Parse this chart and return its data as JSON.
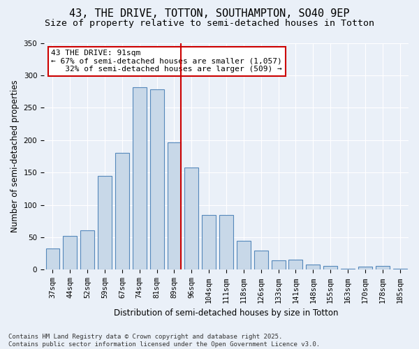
{
  "title": "43, THE DRIVE, TOTTON, SOUTHAMPTON, SO40 9EP",
  "subtitle": "Size of property relative to semi-detached houses in Totton",
  "xlabel": "Distribution of semi-detached houses by size in Totton",
  "ylabel": "Number of semi-detached properties",
  "categories": [
    "37sqm",
    "44sqm",
    "52sqm",
    "59sqm",
    "67sqm",
    "74sqm",
    "81sqm",
    "89sqm",
    "96sqm",
    "104sqm",
    "111sqm",
    "118sqm",
    "126sqm",
    "133sqm",
    "141sqm",
    "148sqm",
    "155sqm",
    "163sqm",
    "170sqm",
    "178sqm",
    "185sqm"
  ],
  "values": [
    33,
    52,
    61,
    145,
    180,
    282,
    278,
    197,
    158,
    85,
    85,
    45,
    30,
    15,
    16,
    8,
    6,
    2,
    5,
    6,
    2
  ],
  "bar_color": "#c8d8e8",
  "bar_edge_color": "#5588bb",
  "vline_x": 7.4,
  "vline_color": "#cc0000",
  "annotation_text": "43 THE DRIVE: 91sqm\n← 67% of semi-detached houses are smaller (1,057)\n   32% of semi-detached houses are larger (509) →",
  "annotation_box_color": "#ffffff",
  "annotation_box_edge": "#cc0000",
  "ylim": [
    0,
    350
  ],
  "yticks": [
    0,
    50,
    100,
    150,
    200,
    250,
    300,
    350
  ],
  "background_color": "#eaf0f8",
  "plot_background": "#eaf0f8",
  "footer": "Contains HM Land Registry data © Crown copyright and database right 2025.\nContains public sector information licensed under the Open Government Licence v3.0.",
  "title_fontsize": 11,
  "subtitle_fontsize": 9.5,
  "ylabel_fontsize": 8.5,
  "xlabel_fontsize": 8.5,
  "tick_fontsize": 7.5,
  "annotation_fontsize": 8,
  "footer_fontsize": 6.5
}
